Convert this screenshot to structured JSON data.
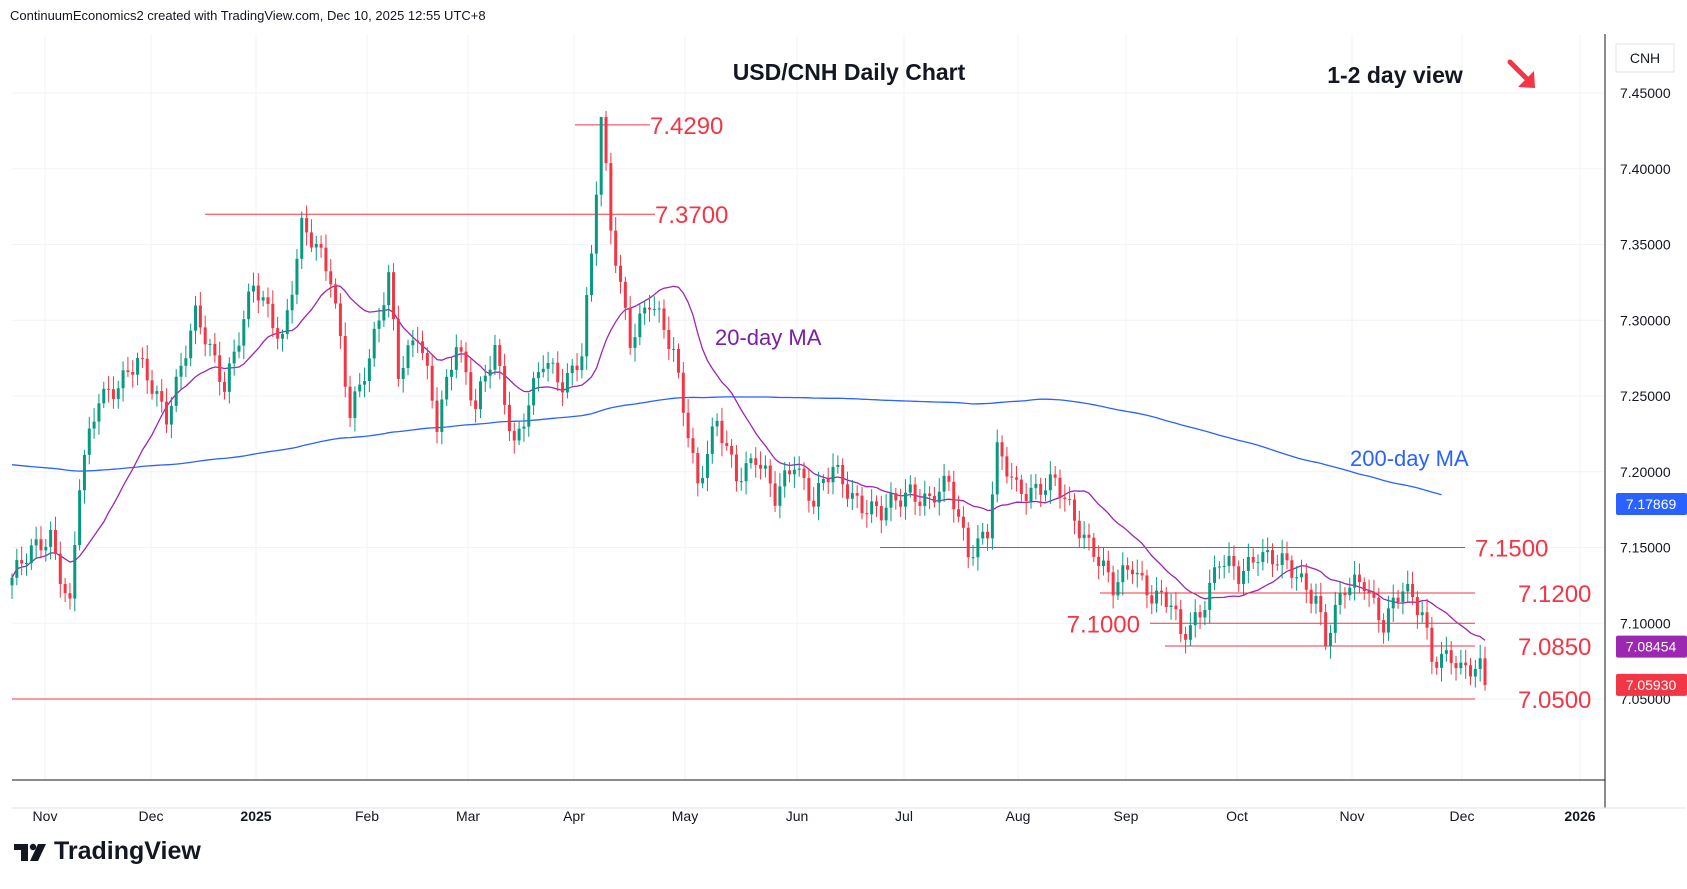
{
  "header": {
    "attribution": "ContinuumEconomics2 created with TradingView.com, Dec 10, 2025 12:55 UTC+8"
  },
  "footer": {
    "brand": "TradingView"
  },
  "chart_data": {
    "type": "candlestick",
    "title": "USD/CNH Daily Chart",
    "subtitle": "1-2 day view",
    "symbol": "CNH",
    "ylim": [
      7.0,
      7.47
    ],
    "y_ticks": [
      "7.45000",
      "7.40000",
      "7.35000",
      "7.30000",
      "7.25000",
      "7.20000",
      "7.15000",
      "7.10000",
      "7.05000"
    ],
    "x_tick_labels": [
      "Nov",
      "Dec",
      "2025",
      "Feb",
      "Mar",
      "Apr",
      "May",
      "Jun",
      "Jul",
      "Aug",
      "Sep",
      "Oct",
      "Nov",
      "Dec",
      "2026"
    ],
    "price_tags": [
      {
        "value": 7.17869,
        "label": "7.17869",
        "color": "#2962ff"
      },
      {
        "value": 7.08454,
        "label": "7.08454",
        "color": "#9c27b0"
      },
      {
        "value": 7.0593,
        "label": "7.05930",
        "color": "#f23645"
      }
    ],
    "levels": [
      {
        "label": "7.4290",
        "value": 7.429
      },
      {
        "label": "7.3700",
        "value": 7.37
      },
      {
        "label": "7.1500",
        "value": 7.15
      },
      {
        "label": "7.1200",
        "value": 7.12
      },
      {
        "label": "7.1000",
        "value": 7.1
      },
      {
        "label": "7.0850",
        "value": 7.085
      },
      {
        "label": "7.0500",
        "value": 7.05
      }
    ],
    "annotations": [
      {
        "text": "20-day MA",
        "color": "#7b1fa2"
      },
      {
        "text": "200-day MA",
        "color": "#2962ff"
      }
    ],
    "path_anchors": [
      [
        0,
        7.13
      ],
      [
        8,
        7.16
      ],
      [
        12,
        7.11
      ],
      [
        14,
        7.19
      ],
      [
        18,
        7.25
      ],
      [
        26,
        7.27
      ],
      [
        32,
        7.24
      ],
      [
        38,
        7.3
      ],
      [
        44,
        7.26
      ],
      [
        50,
        7.32
      ],
      [
        56,
        7.29
      ],
      [
        60,
        7.36
      ],
      [
        66,
        7.33
      ],
      [
        68,
        7.29
      ],
      [
        70,
        7.24
      ],
      [
        74,
        7.27
      ],
      [
        78,
        7.33
      ],
      [
        80,
        7.27
      ],
      [
        84,
        7.29
      ],
      [
        88,
        7.23
      ],
      [
        92,
        7.29
      ],
      [
        96,
        7.24
      ],
      [
        100,
        7.28
      ],
      [
        104,
        7.22
      ],
      [
        110,
        7.27
      ],
      [
        114,
        7.26
      ],
      [
        118,
        7.28
      ],
      [
        120,
        7.34
      ],
      [
        122,
        7.43
      ],
      [
        124,
        7.36
      ],
      [
        128,
        7.29
      ],
      [
        132,
        7.31
      ],
      [
        137,
        7.28
      ],
      [
        140,
        7.23
      ],
      [
        142,
        7.19
      ],
      [
        146,
        7.23
      ],
      [
        150,
        7.2
      ],
      [
        154,
        7.21
      ],
      [
        158,
        7.18
      ],
      [
        162,
        7.21
      ],
      [
        166,
        7.18
      ],
      [
        170,
        7.2
      ],
      [
        176,
        7.18
      ],
      [
        180,
        7.17
      ],
      [
        186,
        7.19
      ],
      [
        190,
        7.18
      ],
      [
        194,
        7.19
      ],
      [
        198,
        7.15
      ],
      [
        202,
        7.16
      ],
      [
        204,
        7.21
      ],
      [
        208,
        7.19
      ],
      [
        212,
        7.19
      ],
      [
        216,
        7.19
      ],
      [
        220,
        7.17
      ],
      [
        224,
        7.15
      ],
      [
        228,
        7.12
      ],
      [
        232,
        7.14
      ],
      [
        236,
        7.12
      ],
      [
        240,
        7.11
      ],
      [
        242,
        7.09
      ],
      [
        246,
        7.11
      ],
      [
        250,
        7.14
      ],
      [
        254,
        7.13
      ],
      [
        258,
        7.15
      ],
      [
        262,
        7.14
      ],
      [
        266,
        7.13
      ],
      [
        270,
        7.12
      ],
      [
        272,
        7.09
      ],
      [
        276,
        7.12
      ],
      [
        280,
        7.13
      ],
      [
        284,
        7.1
      ],
      [
        288,
        7.12
      ],
      [
        292,
        7.11
      ],
      [
        294,
        7.08
      ],
      [
        298,
        7.075
      ],
      [
        300,
        7.065
      ],
      [
        302,
        7.07
      ],
      [
        304,
        7.074
      ],
      [
        305,
        7.0593
      ]
    ]
  }
}
